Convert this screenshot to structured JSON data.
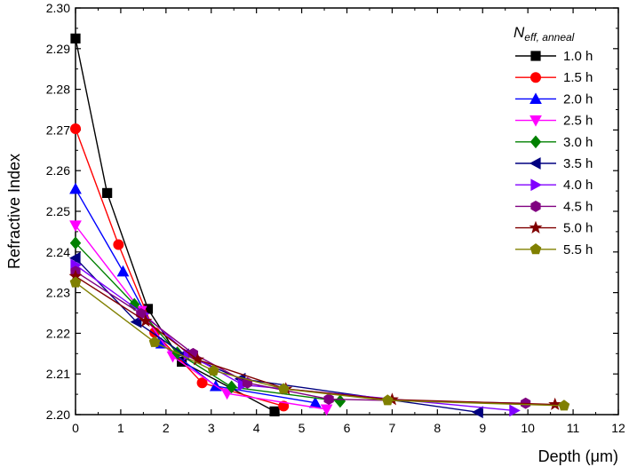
{
  "chart_data": {
    "type": "line",
    "title": "",
    "xlabel": "Depth (μm)",
    "ylabel": "Refractive Index",
    "xlim": [
      0,
      12
    ],
    "ylim": [
      2.2,
      2.3
    ],
    "xticks": [
      "0",
      "1",
      "2",
      "3",
      "4",
      "5",
      "6",
      "7",
      "8",
      "9",
      "10",
      "11",
      "12"
    ],
    "yticks": [
      "2.20",
      "2.21",
      "2.22",
      "2.23",
      "2.24",
      "2.25",
      "2.26",
      "2.27",
      "2.28",
      "2.29",
      "2.30"
    ],
    "grid": false,
    "legend": {
      "position": "top-right",
      "title_main": "N",
      "title_sub": "eff, anneal"
    },
    "series": [
      {
        "name": "1.0 h",
        "color": "#000000",
        "marker": "square",
        "x": [
          0,
          0.7,
          1.6,
          2.35,
          4.4
        ],
        "y": [
          2.2925,
          2.2545,
          2.226,
          2.213,
          2.2008
        ]
      },
      {
        "name": "1.5 h",
        "color": "#ff0000",
        "marker": "circle",
        "x": [
          0,
          0.95,
          1.75,
          2.8,
          4.6
        ],
        "y": [
          2.2703,
          2.2418,
          2.2202,
          2.2078,
          2.2021
        ]
      },
      {
        "name": "2.0 h",
        "color": "#0000ff",
        "marker": "triangle-up",
        "x": [
          0,
          1.05,
          1.9,
          3.1,
          5.3
        ],
        "y": [
          2.2555,
          2.2352,
          2.2175,
          2.207,
          2.2029
        ]
      },
      {
        "name": "2.5 h",
        "color": "#ff00ff",
        "marker": "triangle-down",
        "x": [
          0,
          1.45,
          2.15,
          3.35,
          5.55
        ],
        "y": [
          2.2465,
          2.2255,
          2.2143,
          2.2052,
          2.2013
        ]
      },
      {
        "name": "3.0 h",
        "color": "#008000",
        "marker": "diamond",
        "x": [
          0,
          1.3,
          2.25,
          3.45,
          5.85
        ],
        "y": [
          2.2422,
          2.2271,
          2.2152,
          2.2068,
          2.2033
        ]
      },
      {
        "name": "3.5 h",
        "color": "#000080",
        "marker": "triangle-left",
        "x": [
          0,
          1.35,
          2.4,
          3.65,
          8.9
        ],
        "y": [
          2.2385,
          2.2228,
          2.2148,
          2.2088,
          2.2006
        ]
      },
      {
        "name": "4.0 h",
        "color": "#8000ff",
        "marker": "triangle-right",
        "x": [
          0,
          1.5,
          2.5,
          3.7,
          9.7
        ],
        "y": [
          2.2368,
          2.2248,
          2.2148,
          2.2073,
          2.201
        ]
      },
      {
        "name": "4.5 h",
        "color": "#800080",
        "marker": "hexagon",
        "x": [
          0,
          1.45,
          2.6,
          3.8,
          5.6,
          9.95
        ],
        "y": [
          2.2352,
          2.2248,
          2.215,
          2.2078,
          2.2038,
          2.2028
        ]
      },
      {
        "name": "5.0 h",
        "color": "#800000",
        "marker": "star",
        "x": [
          0,
          1.55,
          2.7,
          4.65,
          7.0,
          10.6
        ],
        "y": [
          2.234,
          2.223,
          2.2135,
          2.2063,
          2.2037,
          2.2025
        ]
      },
      {
        "name": "5.5 h",
        "color": "#808000",
        "marker": "pentagon",
        "x": [
          0,
          1.75,
          3.05,
          4.6,
          6.9,
          10.8
        ],
        "y": [
          2.2325,
          2.2178,
          2.2108,
          2.2063,
          2.2035,
          2.2022
        ]
      }
    ]
  }
}
